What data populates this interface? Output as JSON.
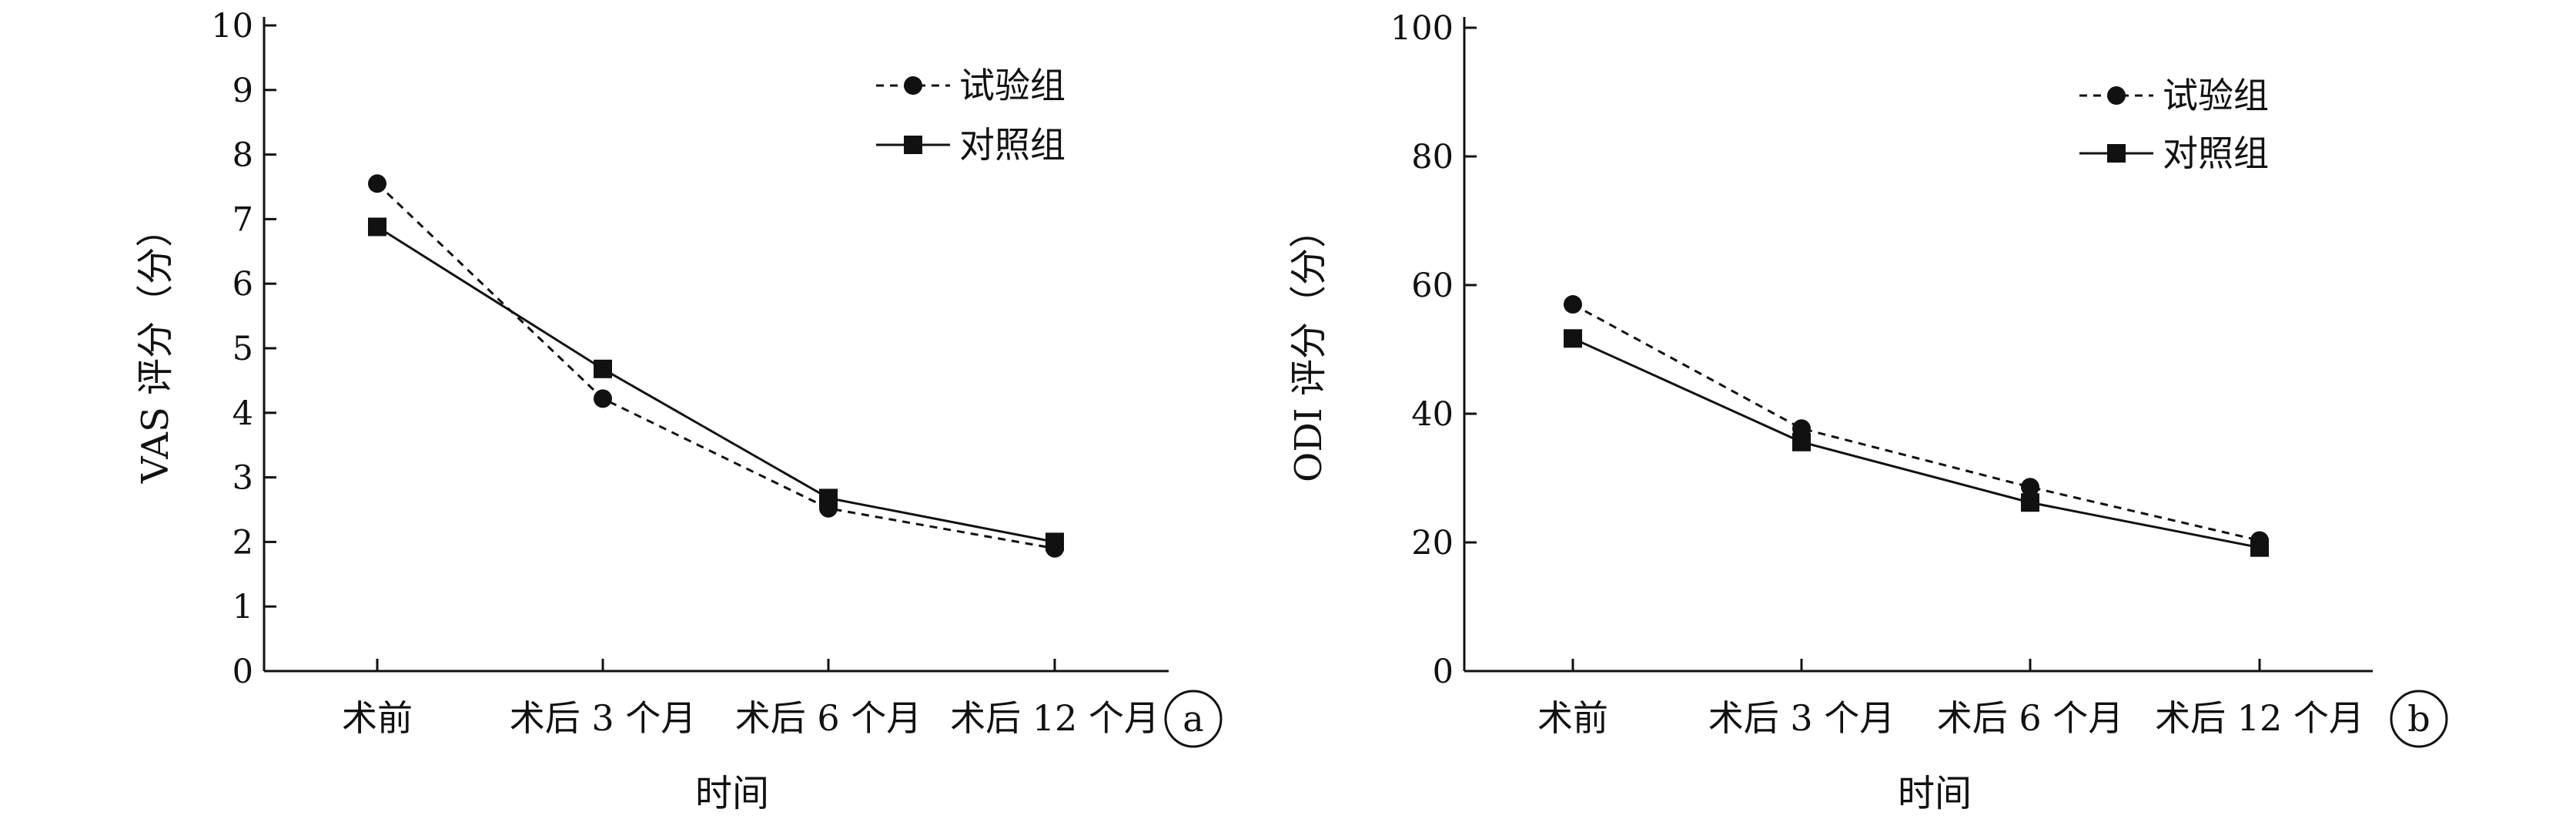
{
  "chart_data": [
    {
      "type": "line",
      "panel_label": "a",
      "categories": [
        "术前",
        "术后 3 个月",
        "术后 6 个月",
        "术后 12 个月"
      ],
      "xlabel": "时间",
      "ylabel": "VAS 评分（分）",
      "ylim": [
        0,
        10
      ],
      "yticks": [
        0,
        1,
        2,
        3,
        4,
        5,
        6,
        7,
        8,
        9,
        10
      ],
      "grid": false,
      "legend": "top-right",
      "series": [
        {
          "name": "试验组",
          "marker": "circle",
          "line": "dashed",
          "values": [
            7.55,
            4.22,
            2.52,
            1.9
          ]
        },
        {
          "name": "对照组",
          "marker": "square",
          "line": "solid",
          "values": [
            6.88,
            4.68,
            2.68,
            2.0
          ]
        }
      ]
    },
    {
      "type": "line",
      "panel_label": "b",
      "categories": [
        "术前",
        "术后 3 个月",
        "术后 6 个月",
        "术后 12 个月"
      ],
      "xlabel": "时间",
      "ylabel": "ODI 评分（分）",
      "ylim": [
        0,
        100
      ],
      "yticks": [
        0,
        20,
        40,
        60,
        80,
        100
      ],
      "grid": false,
      "legend": "top-right",
      "series": [
        {
          "name": "试验组",
          "marker": "circle",
          "line": "dashed",
          "values": [
            57.0,
            37.7,
            28.6,
            20.3
          ]
        },
        {
          "name": "对照组",
          "marker": "square",
          "line": "solid",
          "values": [
            51.7,
            35.6,
            26.2,
            19.2
          ]
        }
      ]
    }
  ]
}
